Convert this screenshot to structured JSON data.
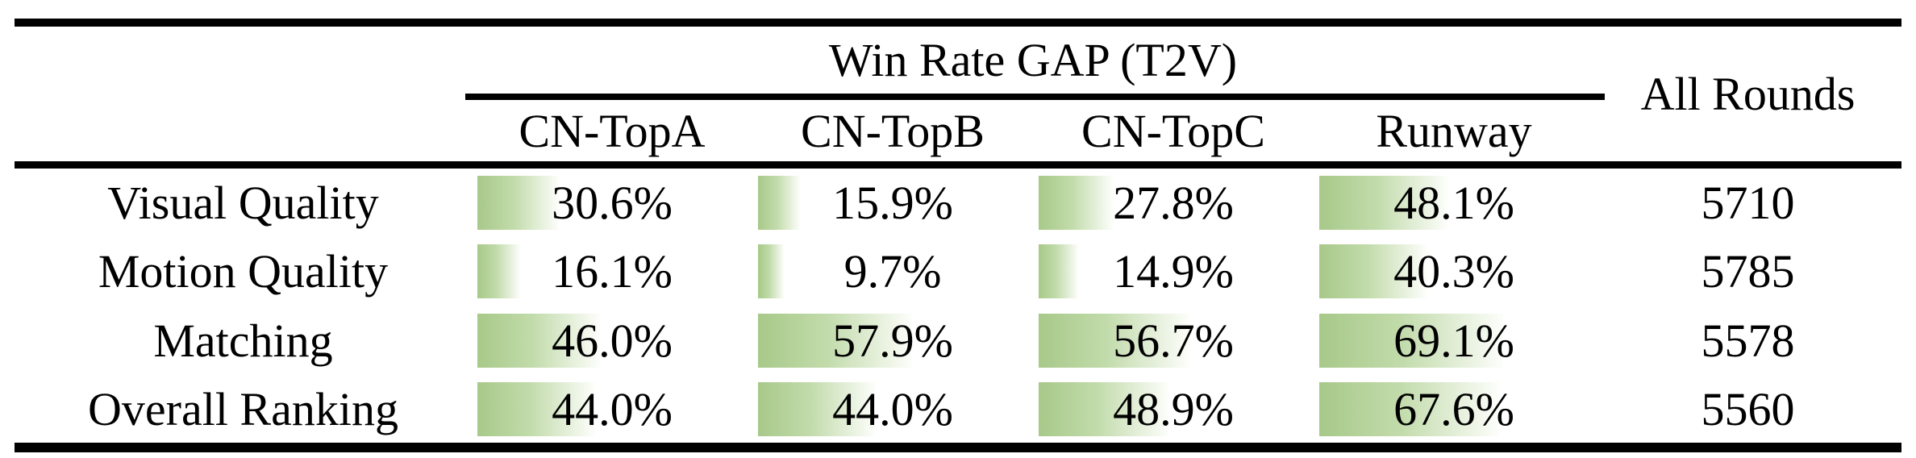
{
  "table": {
    "group_header": "Win Rate GAP (T2V)",
    "all_rounds_header": "All Rounds",
    "columns": [
      "CN-TopA",
      "CN-TopB",
      "CN-TopC",
      "Runway"
    ],
    "rows": [
      {
        "label": "Visual Quality",
        "cells": [
          {
            "text": "30.6%",
            "value": 30.6
          },
          {
            "text": "15.9%",
            "value": 15.9
          },
          {
            "text": "27.8%",
            "value": 27.8
          },
          {
            "text": "48.1%",
            "value": 48.1
          }
        ],
        "all_rounds": "5710"
      },
      {
        "label": "Motion Quality",
        "cells": [
          {
            "text": "16.1%",
            "value": 16.1
          },
          {
            "text": "9.7%",
            "value": 9.7
          },
          {
            "text": "14.9%",
            "value": 14.9
          },
          {
            "text": "40.3%",
            "value": 40.3
          }
        ],
        "all_rounds": "5785"
      },
      {
        "label": "Matching",
        "cells": [
          {
            "text": "46.0%",
            "value": 46.0
          },
          {
            "text": "57.9%",
            "value": 57.9
          },
          {
            "text": "56.7%",
            "value": 56.7
          },
          {
            "text": "69.1%",
            "value": 69.1
          }
        ],
        "all_rounds": "5578"
      },
      {
        "label": "Overall Ranking",
        "cells": [
          {
            "text": "44.0%",
            "value": 44.0
          },
          {
            "text": "44.0%",
            "value": 44.0
          },
          {
            "text": "48.9%",
            "value": 48.9
          },
          {
            "text": "67.6%",
            "value": 67.6
          }
        ],
        "all_rounds": "5560"
      }
    ],
    "bar_color_start": "#a7c989",
    "bar_color_mid": "#c2dbab",
    "bar_color_end": "#fdfefb",
    "rule_color": "#000000",
    "text_color": "#000000"
  },
  "chart_data": {
    "type": "table",
    "title": "Win Rate GAP (T2V)",
    "columns": [
      "CN-TopA",
      "CN-TopB",
      "CN-TopC",
      "Runway",
      "All Rounds"
    ],
    "row_labels": [
      "Visual Quality",
      "Motion Quality",
      "Matching",
      "Overall Ranking"
    ],
    "series": [
      {
        "name": "Visual Quality",
        "values": [
          30.6,
          15.9,
          27.8,
          48.1
        ],
        "all_rounds": 5710
      },
      {
        "name": "Motion Quality",
        "values": [
          16.1,
          9.7,
          14.9,
          40.3
        ],
        "all_rounds": 5785
      },
      {
        "name": "Matching",
        "values": [
          46.0,
          57.9,
          56.7,
          69.1
        ],
        "all_rounds": 5578
      },
      {
        "name": "Overall Ranking",
        "values": [
          44.0,
          44.0,
          48.9,
          67.6
        ],
        "all_rounds": 5560
      }
    ],
    "bar_style": "green-to-white gradient data bars, width proportional to percent, 100% = full column width"
  }
}
